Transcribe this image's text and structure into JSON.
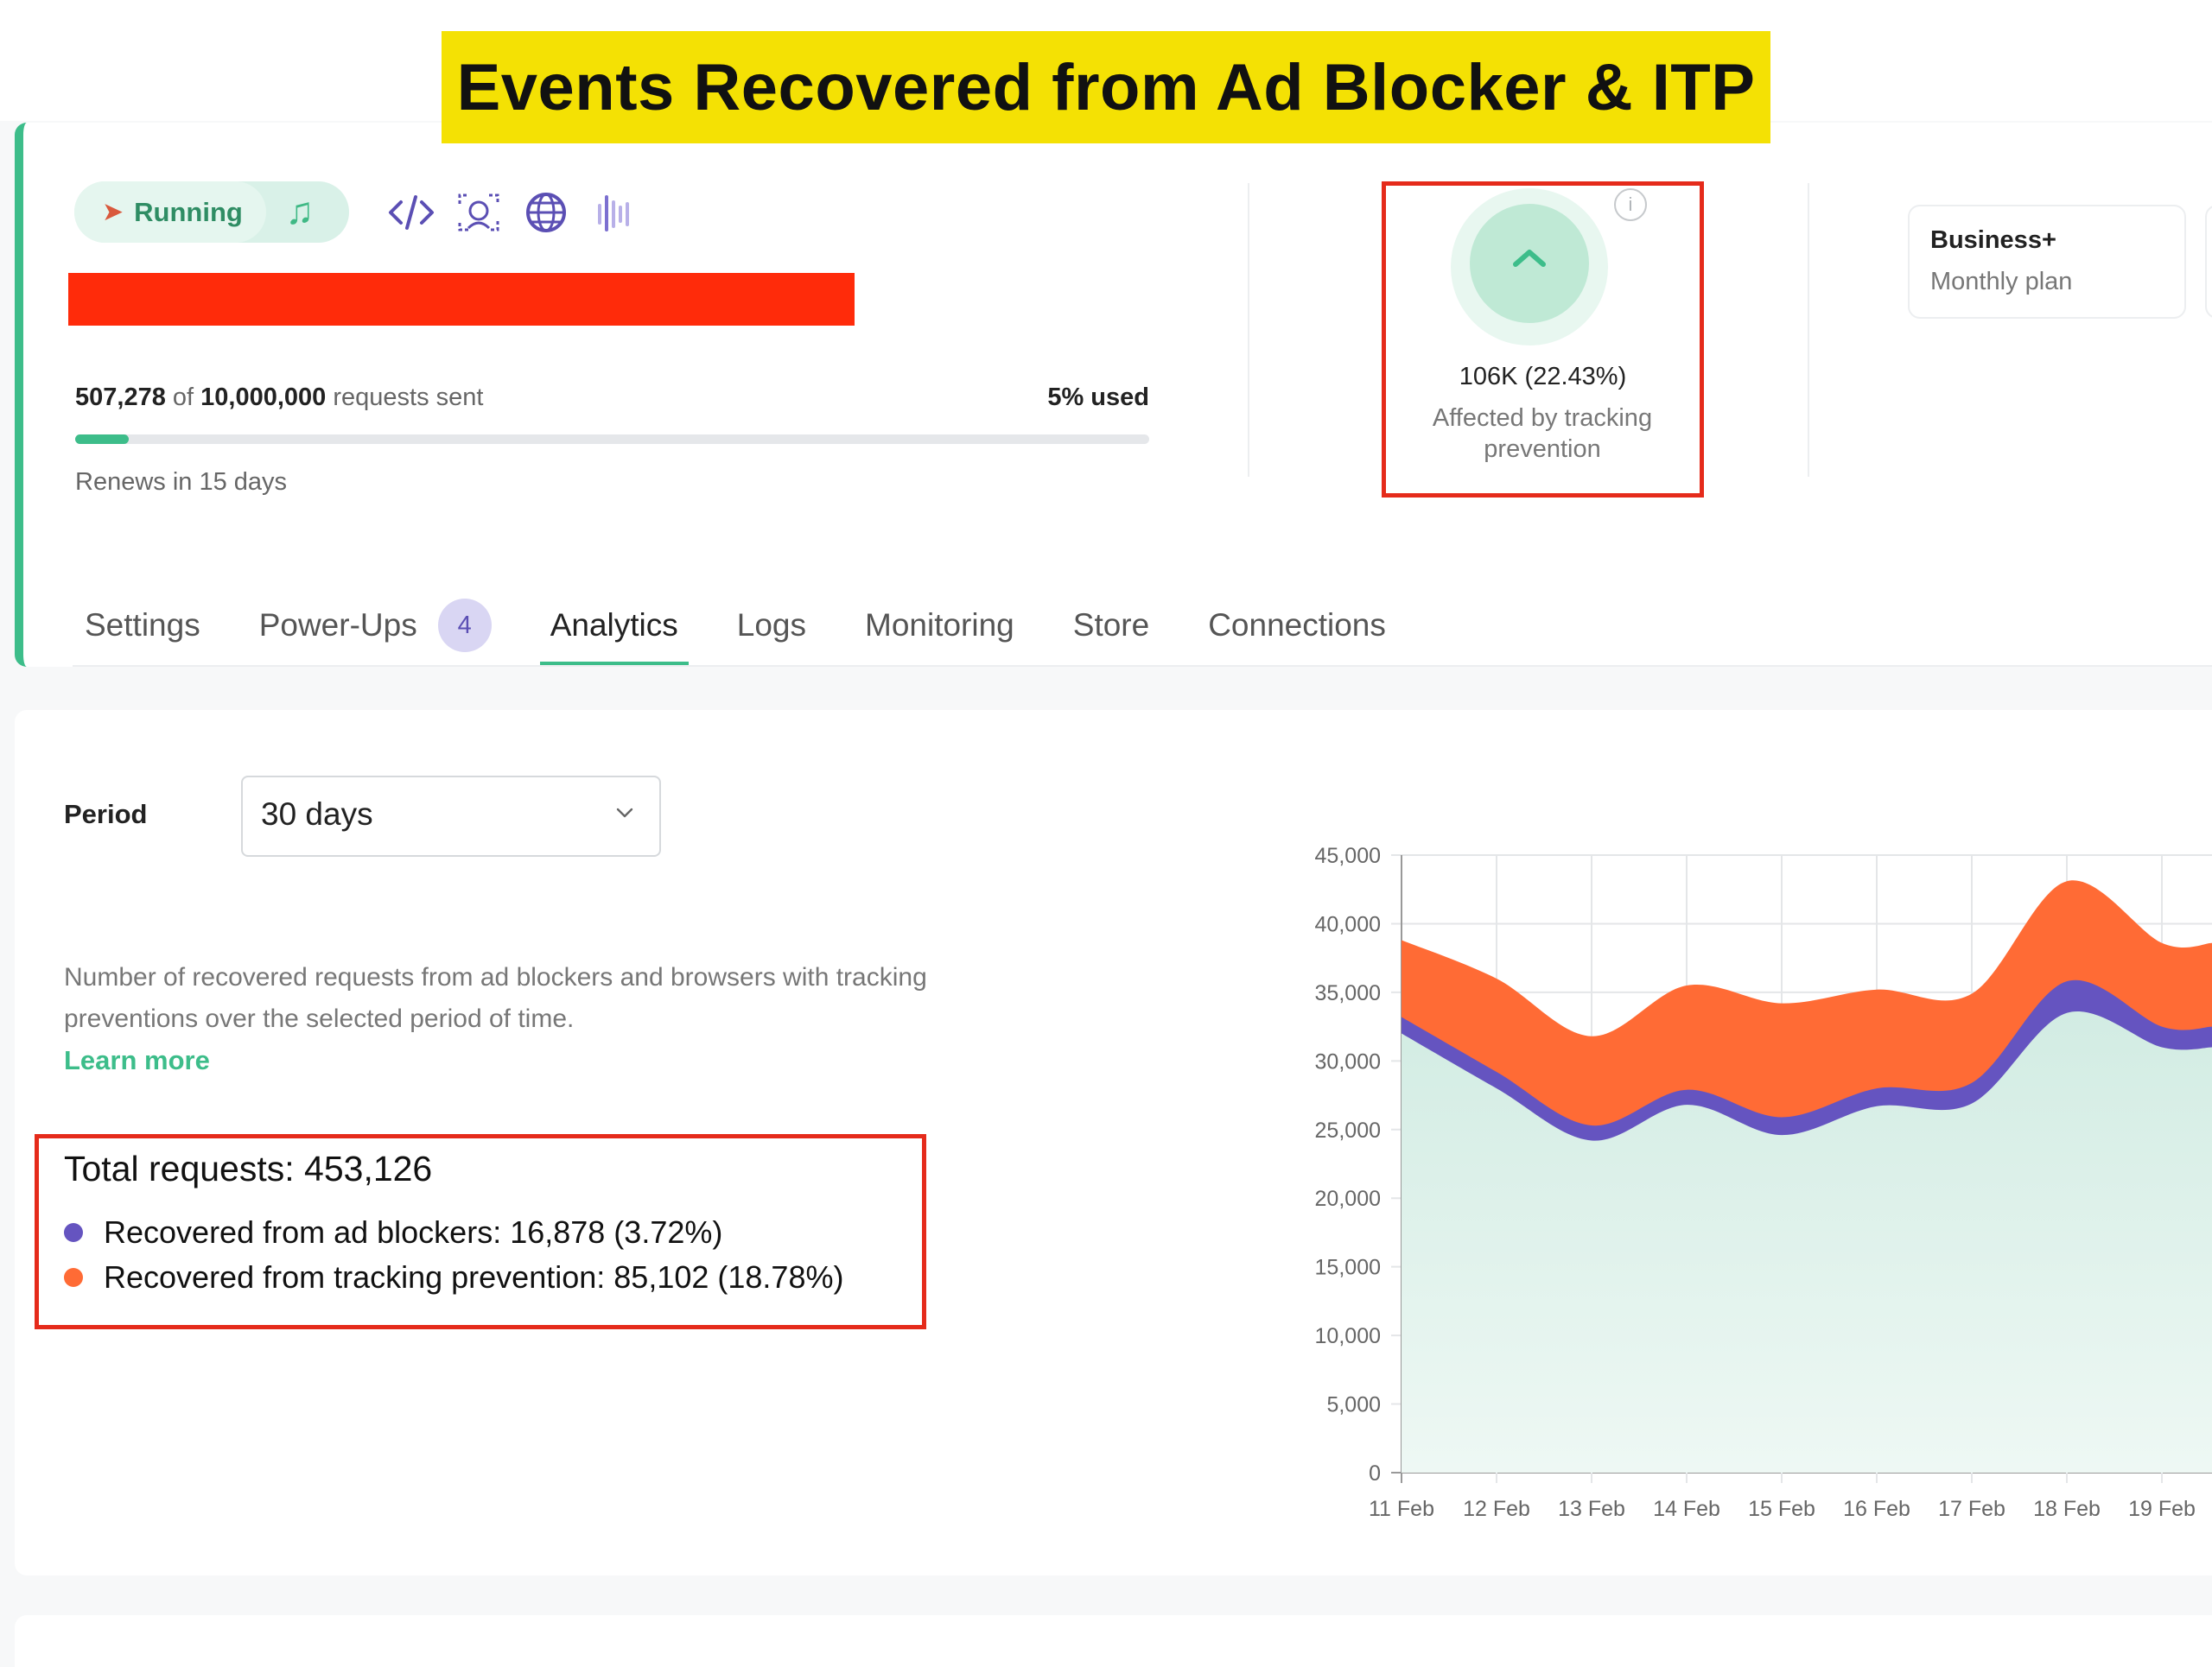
{
  "banner": {
    "title": "Events Recovered from Ad Blocker & ITP"
  },
  "header": {
    "status": "Running",
    "usage": {
      "sent": "507,278",
      "of_word": "of",
      "total": "10,000,000",
      "suffix": "requests sent",
      "used_label": "5% used",
      "used_fraction": 0.05
    },
    "renews": "Renews in 15 days",
    "tracking_prevention": {
      "value": "106K (22.43%)",
      "label": "Affected by tracking prevention"
    },
    "plan": {
      "name": "Business+",
      "type": "Monthly plan"
    }
  },
  "tabs": [
    {
      "label": "Settings"
    },
    {
      "label": "Power-Ups",
      "badge": "4"
    },
    {
      "label": "Analytics",
      "active": true
    },
    {
      "label": "Logs"
    },
    {
      "label": "Monitoring"
    },
    {
      "label": "Store"
    },
    {
      "label": "Connections"
    }
  ],
  "analytics": {
    "period_label": "Period",
    "period_value": "30 days",
    "description": "Number of recovered requests from ad blockers and browsers with tracking preventions over the selected period of time.",
    "learn_more": "Learn more",
    "total": "Total requests: 453,126",
    "legend": [
      {
        "label": "Recovered from ad blockers: 16,878 (3.72%)",
        "color": "#6554c0"
      },
      {
        "label": "Recovered from tracking prevention: 85,102 (18.78%)",
        "color": "#ff6b35"
      }
    ]
  },
  "colors": {
    "accent": "#3dbd8a",
    "highlight_box": "#e52b1b",
    "base_area": "#dff3ec"
  },
  "icons": [
    "rocket-icon",
    "music-icon",
    "code-icon",
    "face-scan-icon",
    "globe-icon",
    "signal-bars-icon",
    "info-icon",
    "chevron-up-icon",
    "chevron-down-icon"
  ],
  "chart_data": {
    "type": "area",
    "stacked": true,
    "categories": [
      "11 Feb",
      "12 Feb",
      "13 Feb",
      "14 Feb",
      "15 Feb",
      "16 Feb",
      "17 Feb",
      "18 Feb",
      "19 Feb"
    ],
    "ylim": [
      0,
      45000
    ],
    "yticks": [
      0,
      5000,
      10000,
      15000,
      20000,
      25000,
      30000,
      35000,
      40000,
      45000
    ],
    "ytick_labels": [
      "0",
      "5,000",
      "10,000",
      "15,000",
      "20,000",
      "25,000",
      "30,000",
      "35,000",
      "40,000",
      "45,000"
    ],
    "grid": true,
    "series": [
      {
        "values": [
          32000,
          28000,
          24200,
          26800,
          24600,
          26700,
          26900,
          33500,
          31000
        ],
        "color": "#dff3ec"
      },
      {
        "values": [
          1200,
          1200,
          1100,
          1100,
          1300,
          1300,
          1500,
          2300,
          1500
        ],
        "color": "#6554c0"
      },
      {
        "values": [
          5600,
          6800,
          6500,
          7600,
          8300,
          7200,
          6500,
          7300,
          6100
        ],
        "color": "#ff6b35"
      }
    ],
    "last_point": [
      31000,
      1500,
      6100
    ]
  }
}
